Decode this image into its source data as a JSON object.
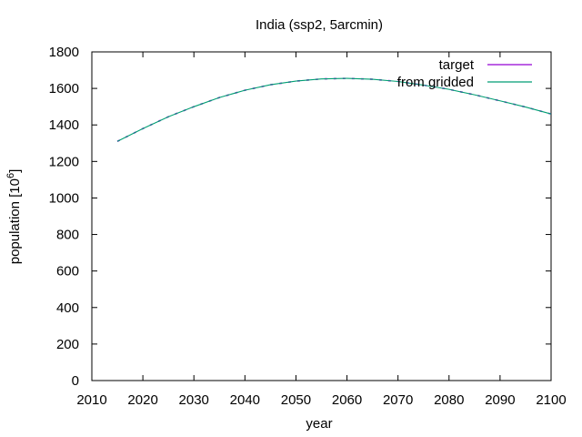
{
  "chart_data": {
    "type": "line",
    "title": "India (ssp2, 5arcmin)",
    "xlabel": "year",
    "ylabel": "population [10",
    "ylabel_superscript": "6",
    "ylabel_suffix": "]",
    "xlim": [
      2010,
      2100
    ],
    "ylim": [
      0,
      1800
    ],
    "x_ticks": [
      2010,
      2020,
      2030,
      2040,
      2050,
      2060,
      2070,
      2080,
      2090,
      2100
    ],
    "y_ticks": [
      0,
      200,
      400,
      600,
      800,
      1000,
      1200,
      1400,
      1600,
      1800
    ],
    "grid": false,
    "legend_position": "top-right",
    "series": [
      {
        "name": "target",
        "color": "#9400d3",
        "x": [
          2015,
          2020,
          2025,
          2030,
          2035,
          2040,
          2045,
          2050,
          2055,
          2060,
          2065,
          2070,
          2075,
          2080,
          2085,
          2090,
          2095,
          2100
        ],
        "values": [
          1310,
          1380,
          1445,
          1500,
          1550,
          1590,
          1620,
          1640,
          1652,
          1655,
          1650,
          1638,
          1618,
          1595,
          1565,
          1532,
          1498,
          1460
        ]
      },
      {
        "name": "from gridded",
        "color": "#009e73",
        "x": [
          2015,
          2020,
          2025,
          2030,
          2035,
          2040,
          2045,
          2050,
          2055,
          2060,
          2065,
          2070,
          2075,
          2080,
          2085,
          2090,
          2095,
          2100
        ],
        "values": [
          1310,
          1380,
          1445,
          1500,
          1550,
          1590,
          1620,
          1640,
          1652,
          1655,
          1650,
          1638,
          1618,
          1595,
          1565,
          1532,
          1498,
          1460
        ]
      }
    ]
  }
}
